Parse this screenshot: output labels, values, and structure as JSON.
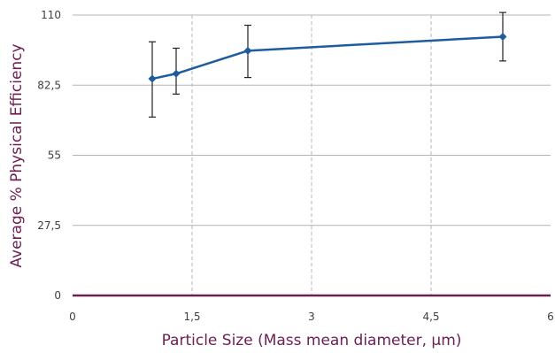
{
  "chart_data": {
    "type": "line",
    "title": "",
    "xlabel": "Particle Size (Mass mean diameter, µm)",
    "ylabel": "Average % Physical Efficiency",
    "xlim": [
      0,
      6
    ],
    "ylim": [
      0,
      110
    ],
    "x_ticks": [
      0,
      1.5,
      3,
      4.5,
      6
    ],
    "x_tick_labels": [
      "0",
      "1,5",
      "3",
      "4,5",
      "6"
    ],
    "y_ticks": [
      0,
      27.5,
      55,
      82.5,
      110
    ],
    "y_tick_labels": [
      "0",
      "27,5",
      "55",
      "82,5",
      "110"
    ],
    "grid": {
      "horizontal": "solid",
      "vertical": "dashed"
    },
    "legend": "none",
    "series": [
      {
        "x": [
          1.0,
          1.3,
          2.2,
          5.4
        ],
        "y": [
          85,
          87,
          96,
          101.5
        ],
        "error_low": [
          70,
          79,
          85.5,
          92
        ],
        "error_high": [
          99.5,
          97,
          106,
          111
        ],
        "marker": "diamond"
      }
    ],
    "colors": {
      "series": "#1f5c9e",
      "axis_title": "#6d1e52",
      "x_axis_line": "#6d1e52",
      "gridline": "#b4b4b4",
      "error_bar": "#222222"
    }
  }
}
